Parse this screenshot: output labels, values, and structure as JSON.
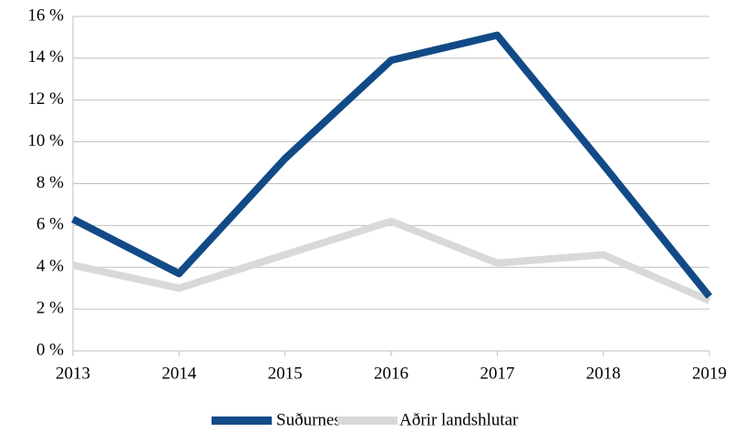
{
  "chart_data": {
    "type": "line",
    "x": [
      2013,
      2014,
      2015,
      2016,
      2017,
      2018,
      2019
    ],
    "xlim": [
      2013,
      2019
    ],
    "xticks": [
      2013,
      2014,
      2015,
      2016,
      2017,
      2018,
      2019
    ],
    "ylim": [
      0,
      16
    ],
    "yticks": [
      {
        "value": 0,
        "label": "0 %"
      },
      {
        "value": 2,
        "label": "2 %"
      },
      {
        "value": 4,
        "label": "4 %"
      },
      {
        "value": 6,
        "label": "6 %"
      },
      {
        "value": 8,
        "label": "8 %"
      },
      {
        "value": 10,
        "label": "10 %"
      },
      {
        "value": 12,
        "label": "12 %"
      },
      {
        "value": 14,
        "label": "14 %"
      },
      {
        "value": 16,
        "label": "16 %"
      }
    ],
    "grid": true,
    "legend": "bottom",
    "series": [
      {
        "name": "Suðurnes",
        "color": "#124a87",
        "values": [
          6.3,
          3.7,
          9.2,
          13.9,
          15.1,
          8.9,
          2.6
        ]
      },
      {
        "name": "Aðrir landshlutar",
        "color": "#d9d9d9",
        "values": [
          4.1,
          3.0,
          4.6,
          6.2,
          4.2,
          4.6,
          2.4
        ]
      }
    ]
  }
}
